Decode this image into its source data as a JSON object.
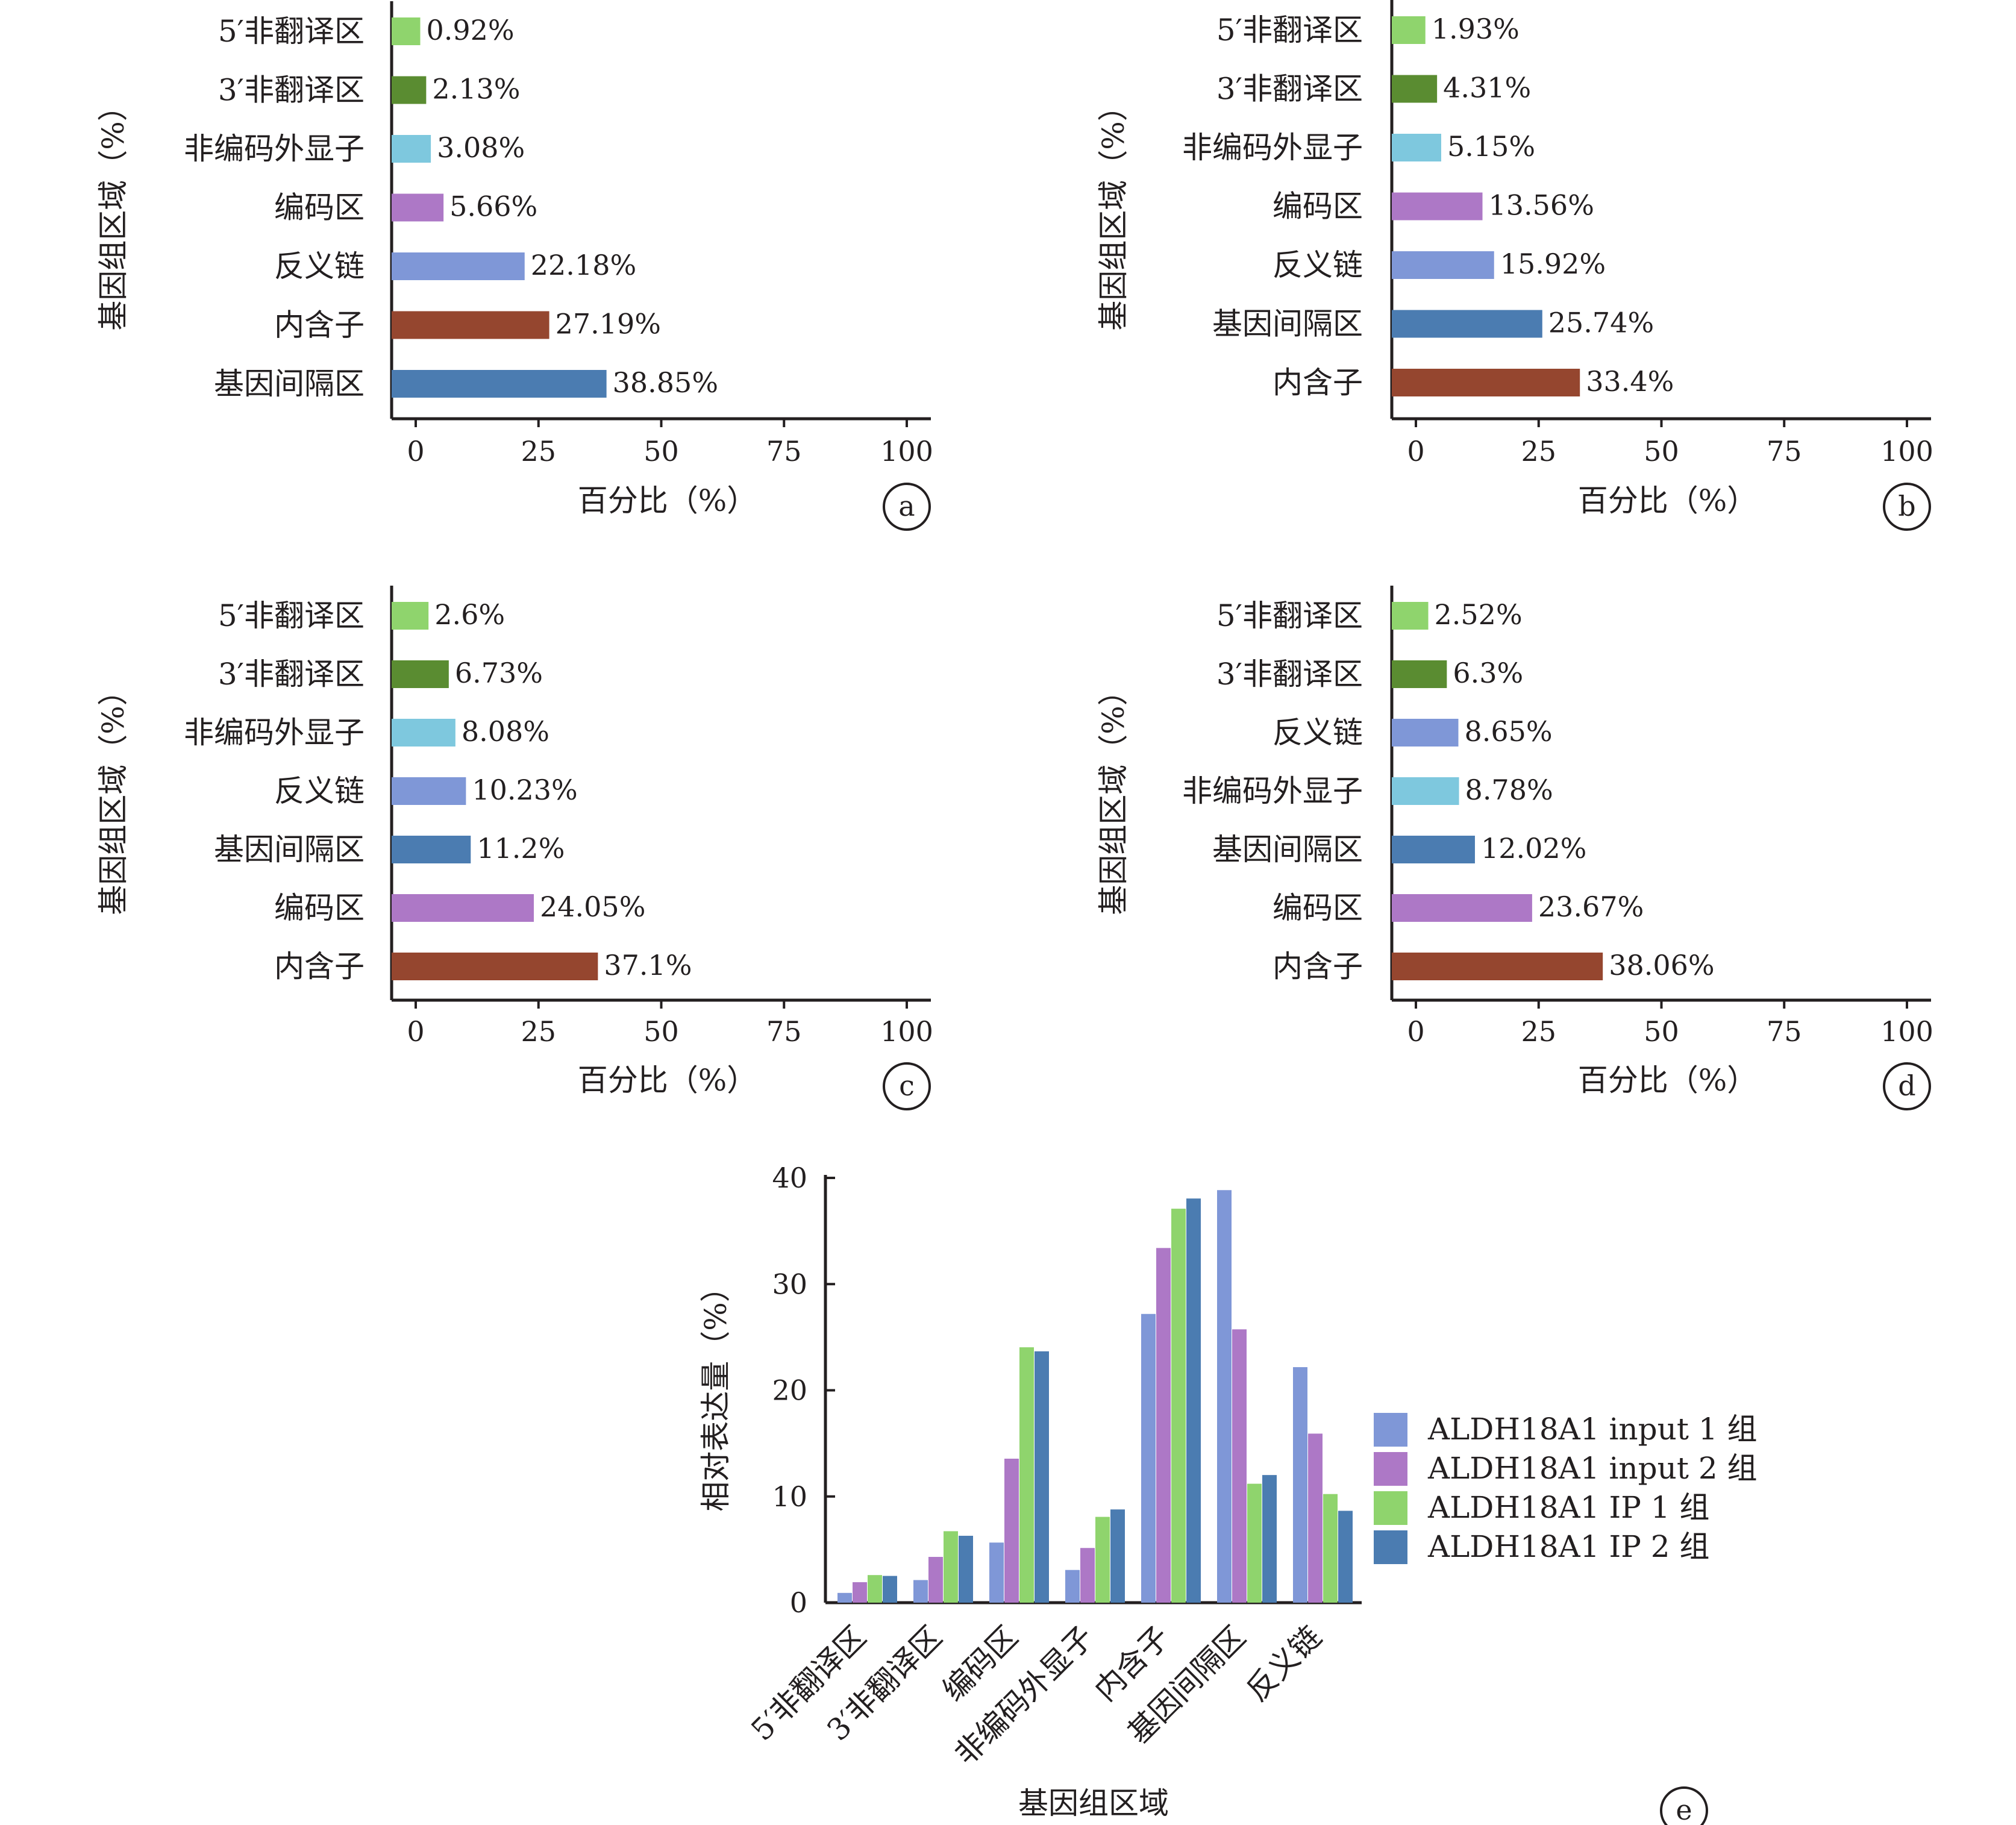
{
  "chart_data": [
    {
      "panel": "a",
      "type": "bar",
      "orientation": "horizontal",
      "ylabel": "基因组区域（%）",
      "xlabel": "百分比（%）",
      "xlim": [
        0,
        100
      ],
      "xticks": [
        0,
        25,
        50,
        75,
        100
      ],
      "categories": [
        "5′非翻译区",
        "3′非翻译区",
        "非编码外显子",
        "编码区",
        "反义链",
        "内含子",
        "基因间隔区"
      ],
      "values": [
        0.92,
        2.13,
        3.08,
        5.66,
        22.18,
        27.19,
        38.85
      ],
      "value_labels": [
        "0.92%",
        "2.13%",
        "3.08%",
        "5.66%",
        "22.18%",
        "27.19%",
        "38.85%"
      ],
      "colors": [
        "#8fd46d",
        "#5a8c31",
        "#7ec8de",
        "#ad78c6",
        "#7f97d7",
        "#95462f",
        "#4b7cb1"
      ]
    },
    {
      "panel": "b",
      "type": "bar",
      "orientation": "horizontal",
      "ylabel": "基因组区域（%）",
      "xlabel": "百分比（%）",
      "xlim": [
        0,
        100
      ],
      "xticks": [
        0,
        25,
        50,
        75,
        100
      ],
      "categories": [
        "5′非翻译区",
        "3′非翻译区",
        "非编码外显子",
        "编码区",
        "反义链",
        "基因间隔区",
        "内含子"
      ],
      "values": [
        1.93,
        4.31,
        5.15,
        13.56,
        15.92,
        25.74,
        33.4
      ],
      "value_labels": [
        "1.93%",
        "4.31%",
        "5.15%",
        "13.56%",
        "15.92%",
        "25.74%",
        "33.4%"
      ],
      "colors": [
        "#8fd46d",
        "#5a8c31",
        "#7ec8de",
        "#ad78c6",
        "#7f97d7",
        "#4b7cb1",
        "#95462f"
      ]
    },
    {
      "panel": "c",
      "type": "bar",
      "orientation": "horizontal",
      "ylabel": "基因组区域（%）",
      "xlabel": "百分比（%）",
      "xlim": [
        0,
        100
      ],
      "xticks": [
        0,
        25,
        50,
        75,
        100
      ],
      "categories": [
        "5′非翻译区",
        "3′非翻译区",
        "非编码外显子",
        "反义链",
        "基因间隔区",
        "编码区",
        "内含子"
      ],
      "values": [
        2.6,
        6.73,
        8.08,
        10.23,
        11.2,
        24.05,
        37.1
      ],
      "value_labels": [
        "2.6%",
        "6.73%",
        "8.08%",
        "10.23%",
        "11.2%",
        "24.05%",
        "37.1%"
      ],
      "colors": [
        "#8fd46d",
        "#5a8c31",
        "#7ec8de",
        "#7f97d7",
        "#4b7cb1",
        "#ad78c6",
        "#95462f"
      ]
    },
    {
      "panel": "d",
      "type": "bar",
      "orientation": "horizontal",
      "ylabel": "基因组区域（%）",
      "xlabel": "百分比（%）",
      "xlim": [
        0,
        100
      ],
      "xticks": [
        0,
        25,
        50,
        75,
        100
      ],
      "categories": [
        "5′非翻译区",
        "3′非翻译区",
        "反义链",
        "非编码外显子",
        "基因间隔区",
        "编码区",
        "内含子"
      ],
      "values": [
        2.52,
        6.3,
        8.65,
        8.78,
        12.02,
        23.67,
        38.06
      ],
      "value_labels": [
        "2.52%",
        "6.3%",
        "8.65%",
        "8.78%",
        "12.02%",
        "23.67%",
        "38.06%"
      ],
      "colors": [
        "#8fd46d",
        "#5a8c31",
        "#7f97d7",
        "#7ec8de",
        "#4b7cb1",
        "#ad78c6",
        "#95462f"
      ]
    },
    {
      "panel": "e",
      "type": "bar",
      "orientation": "vertical",
      "ylabel": "相对表达量（%）",
      "xlabel": "基因组区域",
      "ylim": [
        0,
        40
      ],
      "yticks": [
        0,
        10,
        20,
        30,
        40
      ],
      "categories": [
        "5′非翻译区",
        "3′非翻译区",
        "编码区",
        "非编码外显子",
        "内含子",
        "基因间隔区",
        "反义链"
      ],
      "series": [
        {
          "name": "ALDH18A1 input 1 组",
          "color": "#7f97d7",
          "values": [
            0.92,
            2.13,
            5.66,
            3.08,
            27.19,
            38.85,
            22.18
          ]
        },
        {
          "name": "ALDH18A1 input 2 组",
          "color": "#ad78c6",
          "values": [
            1.93,
            4.31,
            13.56,
            5.15,
            33.4,
            25.74,
            15.92
          ]
        },
        {
          "name": "ALDH18A1 IP 1 组",
          "color": "#8fd46d",
          "values": [
            2.6,
            6.73,
            24.05,
            8.08,
            37.1,
            11.2,
            10.23
          ]
        },
        {
          "name": "ALDH18A1 IP 2 组",
          "color": "#4b7cb1",
          "values": [
            2.52,
            6.3,
            23.67,
            8.78,
            38.06,
            12.02,
            8.65
          ]
        }
      ],
      "legend": "right"
    }
  ]
}
